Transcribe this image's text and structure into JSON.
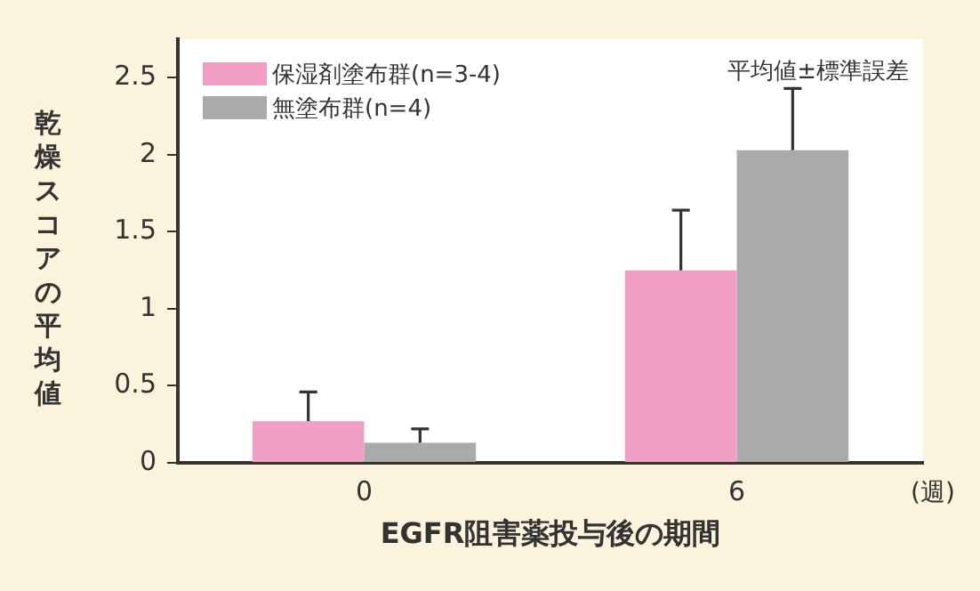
{
  "chart_data": {
    "type": "bar",
    "xlabel": "EGFR阻害薬投与後の期間",
    "ylabel": "乾燥スコアの平均値",
    "categories": [
      "0",
      "6"
    ],
    "series": [
      {
        "name": "保湿剤塗布群(n=3-4)",
        "color": "#f09ec4",
        "values": [
          0.27,
          1.25
        ],
        "errors": [
          [
            0.27,
            0.46
          ],
          [
            1.25,
            1.64
          ]
        ]
      },
      {
        "name": "無塗布群(n=4)",
        "color": "#a9aaaa",
        "values": [
          0.13,
          2.03
        ],
        "errors": [
          [
            0.13,
            0.22
          ],
          [
            2.03,
            2.43
          ]
        ]
      }
    ],
    "ylim": [
      0,
      2.75
    ],
    "yticks": [
      0,
      0.5,
      1,
      1.5,
      2,
      2.5
    ],
    "grid": false,
    "legend": "top left",
    "annotations": [
      "平均値±標準誤差",
      "(週)"
    ]
  }
}
